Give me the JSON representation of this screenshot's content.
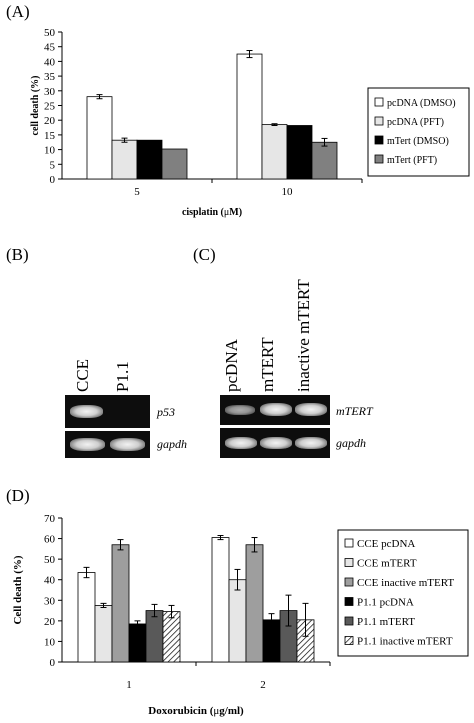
{
  "panels": {
    "A": "(A)",
    "B": "(B)",
    "C": "(C)",
    "D": "(D)"
  },
  "chart_data": [
    {
      "type": "bar",
      "panel": "A",
      "ylabel": "cell death (%)",
      "xlabel_prefix": "cisplatin (",
      "xlabel_mu": "μ",
      "xlabel_suffix": "M)",
      "ylim": [
        0,
        50
      ],
      "yticks": [
        "0",
        "5",
        "10",
        "15",
        "20",
        "25",
        "30",
        "35",
        "40",
        "45",
        "50"
      ],
      "categories": [
        "5",
        "10"
      ],
      "legend_position": "right",
      "series": [
        {
          "name": "pcDNA (DMSO)",
          "values": [
            28.0,
            42.5
          ],
          "errors": [
            0.7,
            1.2
          ],
          "color": "#ffffff"
        },
        {
          "name": "pcDNA (PFT)",
          "values": [
            13.2,
            18.5
          ],
          "errors": [
            0.7,
            0.3
          ],
          "color": "#e6e6e6"
        },
        {
          "name": "mTert (DMSO)",
          "values": [
            13.2,
            18.2
          ],
          "errors": [
            0,
            0
          ],
          "color": "#000000"
        },
        {
          "name": "mTert (PFT)",
          "values": [
            10.2,
            12.5
          ],
          "errors": [
            0,
            1.3
          ],
          "color": "#808080"
        }
      ]
    },
    {
      "type": "bar",
      "panel": "D",
      "ylabel": "Cell death (%)",
      "xlabel_prefix": "Doxorubicin (",
      "xlabel_mu": "μ",
      "xlabel_suffix": "g/ml)",
      "ylim": [
        0,
        70
      ],
      "yticks": [
        "0",
        "10",
        "20",
        "30",
        "40",
        "50",
        "60",
        "70"
      ],
      "categories": [
        "1",
        "2"
      ],
      "legend_position": "right",
      "series": [
        {
          "name": "CCE pcDNA",
          "values": [
            43.5,
            60.5
          ],
          "errors": [
            2.5,
            1.0
          ],
          "color": "#ffffff"
        },
        {
          "name": "CCE mTERT",
          "values": [
            27.5,
            40.0
          ],
          "errors": [
            1.0,
            5.0
          ],
          "color": "#e6e6e6"
        },
        {
          "name": "CCE inactive mTERT",
          "values": [
            57.0,
            57.0
          ],
          "errors": [
            2.5,
            3.5
          ],
          "color": "#9e9e9e"
        },
        {
          "name": "P1.1 pcDNA",
          "values": [
            18.5,
            20.5
          ],
          "errors": [
            1.5,
            3.0
          ],
          "color": "#000000"
        },
        {
          "name": "P1.1 mTERT",
          "values": [
            25.0,
            25.0
          ],
          "errors": [
            3.0,
            7.5
          ],
          "color": "#595959"
        },
        {
          "name": "P1.1 inactive mTERT",
          "values": [
            24.5,
            20.5
          ],
          "errors": [
            3.0,
            8.0
          ],
          "color": "hatch"
        }
      ]
    }
  ],
  "gel_B": {
    "lanes": [
      "CCE",
      "P1.1"
    ],
    "genes": [
      "p53",
      "gapdh"
    ]
  },
  "gel_C": {
    "lanes": [
      "pcDNA",
      "mTERT",
      "inactive mTERT"
    ],
    "genes": [
      "mTERT",
      "gapdh"
    ]
  }
}
